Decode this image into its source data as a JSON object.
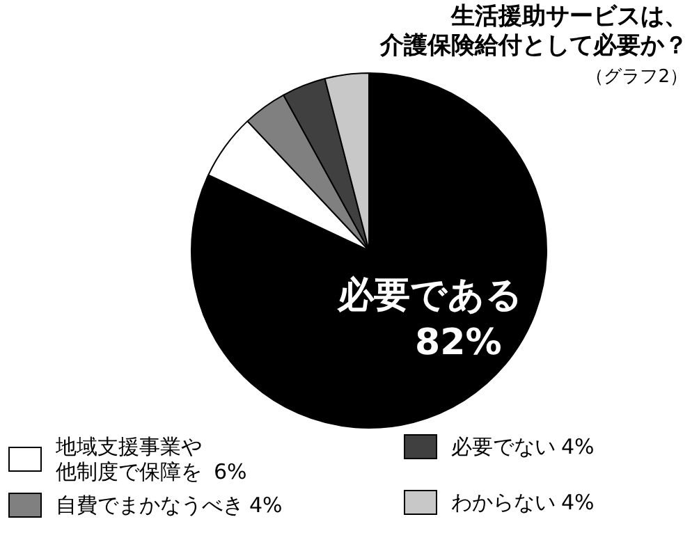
{
  "chart_data": {
    "type": "pie",
    "title": "生活援助サービスは、介護保険給付として必要か？",
    "subtitle": "（グラフ2）",
    "categories": [
      "必要である",
      "地域支援事業や他制度で保障を",
      "自費でまかなうべき",
      "必要でない",
      "わからない"
    ],
    "values": [
      82,
      6,
      4,
      4,
      4
    ],
    "value_labels": [
      "82%",
      "6%",
      "4%",
      "4%",
      "4%"
    ],
    "colors": [
      "#000000",
      "#ffffff",
      "#808080",
      "#404040",
      "#c8c8c8"
    ],
    "legend": "bottom"
  }
}
